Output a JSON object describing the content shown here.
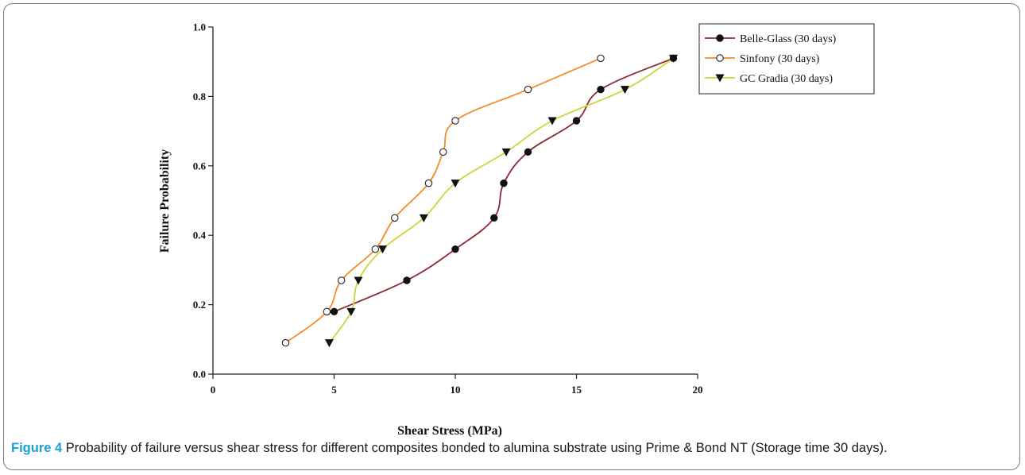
{
  "caption": {
    "label": "Figure 4",
    "text": "Probability of failure versus shear stress for different composites bonded to alumina substrate using Prime & Bond NT (Storage time 30 days)."
  },
  "chart_data": {
    "type": "line",
    "title": "",
    "xlabel": "Shear Stress (MPa)",
    "ylabel": "Failure Probability",
    "xlim": [
      0,
      20
    ],
    "ylim": [
      0.0,
      1.0
    ],
    "xticks": [
      0,
      5,
      10,
      15,
      20
    ],
    "yticks": [
      0.0,
      0.2,
      0.4,
      0.6,
      0.8,
      1.0
    ],
    "xtick_labels": [
      "0",
      "5",
      "10",
      "15",
      "20"
    ],
    "ytick_labels": [
      "0.0",
      "0.2",
      "0.4",
      "0.6",
      "0.8",
      "1.0"
    ],
    "grid": false,
    "legend_position": "top-right",
    "series": [
      {
        "name": "Belle-Glass (30 days)",
        "color": "#8b2a35",
        "marker": "filled-circle",
        "x": [
          5.0,
          8.0,
          10.0,
          11.6,
          12.0,
          13.0,
          15.0,
          16.0,
          19.0
        ],
        "y": [
          0.18,
          0.27,
          0.36,
          0.45,
          0.55,
          0.64,
          0.73,
          0.82,
          0.91
        ]
      },
      {
        "name": "Sinfony (30 days)",
        "color": "#f28c28",
        "marker": "open-circle",
        "x": [
          3.0,
          4.7,
          5.3,
          6.7,
          7.5,
          8.9,
          9.5,
          10.0,
          13.0,
          16.0
        ],
        "y": [
          0.09,
          0.18,
          0.27,
          0.36,
          0.45,
          0.55,
          0.64,
          0.73,
          0.82,
          0.91
        ]
      },
      {
        "name": "GC Gradia (30 days)",
        "color": "#cfd43a",
        "marker": "down-triangle",
        "x": [
          4.8,
          5.7,
          6.0,
          7.0,
          8.7,
          10.0,
          12.1,
          14.0,
          17.0,
          19.0
        ],
        "y": [
          0.09,
          0.18,
          0.27,
          0.36,
          0.45,
          0.55,
          0.64,
          0.73,
          0.82,
          0.91
        ]
      }
    ]
  }
}
